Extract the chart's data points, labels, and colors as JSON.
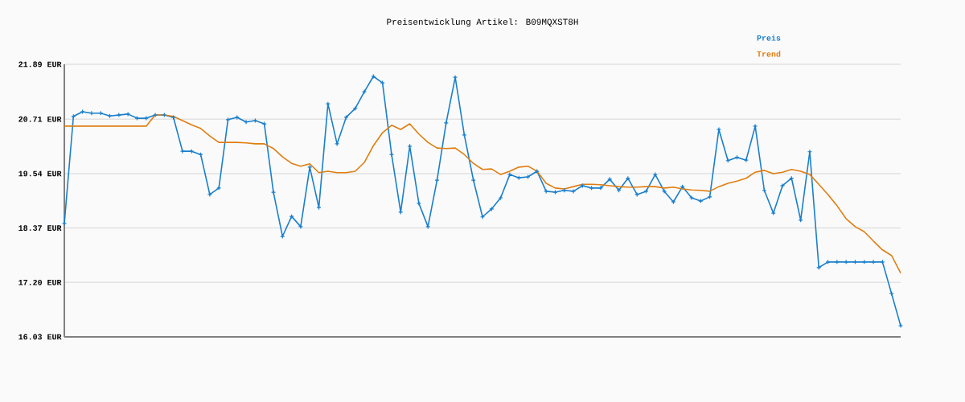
{
  "chart_data": {
    "type": "line",
    "title": "Preisentwicklung Artikel: B09MQXST8H",
    "categories": [
      null,
      null,
      null,
      null,
      null,
      null,
      null,
      null,
      null,
      null,
      null,
      null,
      null,
      null,
      null,
      null,
      null,
      null,
      null,
      null,
      null,
      null,
      null,
      null,
      null,
      null,
      null,
      null,
      null,
      null,
      null,
      null,
      null,
      null,
      null,
      null,
      null,
      null,
      null,
      null,
      null,
      null,
      null,
      null,
      null,
      null,
      null,
      null,
      null,
      null,
      null,
      null,
      null,
      null,
      null,
      null,
      null,
      null,
      null,
      null,
      null,
      null,
      null,
      null,
      null,
      null,
      null,
      null,
      null,
      null,
      null,
      null,
      null,
      null,
      null,
      null,
      null,
      null,
      null,
      null,
      null,
      null,
      null,
      null,
      null,
      null,
      null,
      null,
      null,
      null,
      null,
      null,
      null
    ],
    "series": [
      {
        "name": "Preis",
        "color": "#1a7fcc",
        "marker": "cross",
        "values": [
          18.47,
          20.77,
          20.87,
          20.84,
          20.84,
          20.78,
          20.8,
          20.82,
          20.73,
          20.73,
          20.8,
          20.8,
          20.75,
          20.02,
          20.02,
          19.95,
          19.09,
          19.23,
          20.7,
          20.75,
          20.65,
          20.68,
          20.61,
          19.14,
          18.19,
          18.62,
          18.4,
          19.68,
          18.81,
          21.04,
          20.18,
          20.75,
          20.94,
          21.3,
          21.63,
          21.49,
          19.95,
          18.71,
          20.13,
          18.9,
          18.4,
          19.4,
          20.63,
          21.61,
          20.37,
          19.4,
          18.61,
          18.78,
          19.02,
          19.52,
          19.45,
          19.47,
          19.59,
          19.16,
          19.14,
          19.18,
          19.16,
          19.28,
          19.23,
          19.23,
          19.42,
          19.18,
          19.44,
          19.09,
          19.16,
          19.52,
          19.16,
          18.93,
          19.26,
          19.02,
          18.95,
          19.04,
          20.49,
          19.82,
          19.89,
          19.83,
          20.56,
          19.18,
          18.69,
          19.28,
          19.44,
          18.54,
          20.01,
          17.52,
          17.64,
          17.64,
          17.64,
          17.64,
          17.64,
          17.64,
          17.64,
          16.96,
          16.27
        ]
      },
      {
        "name": "Trend",
        "color": "#e07d10",
        "marker": "none",
        "values": [
          20.56,
          20.56,
          20.56,
          20.56,
          20.56,
          20.56,
          20.56,
          20.56,
          20.56,
          20.56,
          20.8,
          20.8,
          20.77,
          20.68,
          20.59,
          20.51,
          20.35,
          20.21,
          20.21,
          20.21,
          20.2,
          20.18,
          20.18,
          20.08,
          19.9,
          19.76,
          19.7,
          19.75,
          19.56,
          19.59,
          19.56,
          19.56,
          19.59,
          19.78,
          20.14,
          20.42,
          20.58,
          20.49,
          20.61,
          20.39,
          20.21,
          20.09,
          20.08,
          20.09,
          19.95,
          19.76,
          19.63,
          19.64,
          19.52,
          19.59,
          19.68,
          19.7,
          19.59,
          19.33,
          19.23,
          19.21,
          19.26,
          19.31,
          19.31,
          19.3,
          19.28,
          19.26,
          19.25,
          19.25,
          19.26,
          19.26,
          19.23,
          19.25,
          19.21,
          19.19,
          19.18,
          19.16,
          19.26,
          19.33,
          19.38,
          19.44,
          19.57,
          19.61,
          19.54,
          19.57,
          19.63,
          19.59,
          19.52,
          19.31,
          19.09,
          18.85,
          18.57,
          18.4,
          18.29,
          18.09,
          17.9,
          17.78,
          17.4
        ]
      }
    ],
    "ylim": [
      16.03,
      21.89
    ],
    "yticks": [
      {
        "value": 16.03,
        "label": "16.03 EUR"
      },
      {
        "value": 17.2,
        "label": "17.20 EUR"
      },
      {
        "value": 18.37,
        "label": "18.37 EUR"
      },
      {
        "value": 19.54,
        "label": "19.54 EUR"
      },
      {
        "value": 20.71,
        "label": "20.71 EUR"
      },
      {
        "value": 21.89,
        "label": "21.89 EUR"
      }
    ],
    "grid": "y",
    "legend": "top right",
    "tick_labels": "y"
  }
}
